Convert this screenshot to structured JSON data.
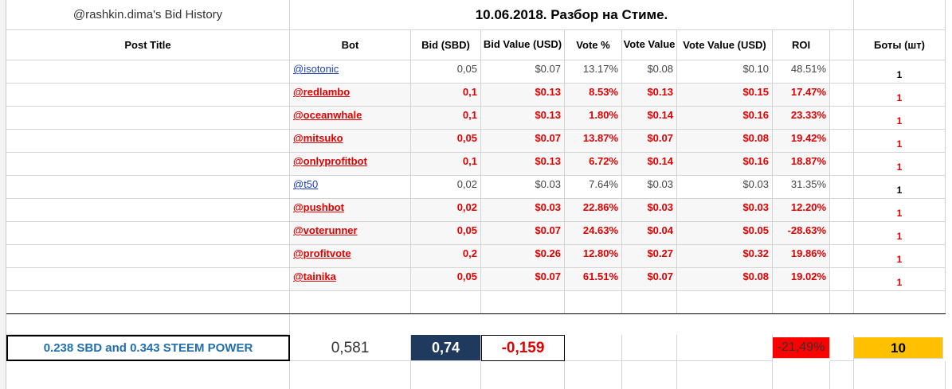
{
  "header": {
    "account_title": "@rashkin.dima's Bid History",
    "date_title": "10.06.2018. Разбор на Стиме."
  },
  "columns": [
    "Post Title",
    "Bot",
    "Bid (SBD)",
    "Bid Value (USD)",
    "Vote %",
    "Vote Value",
    "Vote Value (USD)",
    "ROI",
    "Боты (шт)"
  ],
  "rows": [
    {
      "bot": "@isotonic",
      "bid": "0,05",
      "bid_value": "$0.07",
      "vote_pct": "13.17%",
      "vote_value": "$0.08",
      "vote_value_usd": "$0.10",
      "roi": "48.51%",
      "count": "1",
      "style": "normal"
    },
    {
      "bot": "@redlambo",
      "bid": "0,1",
      "bid_value": "$0.13",
      "vote_pct": "8.53%",
      "vote_value": "$0.13",
      "vote_value_usd": "$0.15",
      "roi": "17.47%",
      "count": "1",
      "style": "red"
    },
    {
      "bot": "@oceanwhale",
      "bid": "0,1",
      "bid_value": "$0.13",
      "vote_pct": "1.80%",
      "vote_value": "$0.14",
      "vote_value_usd": "$0.16",
      "roi": "23.33%",
      "count": "1",
      "style": "red"
    },
    {
      "bot": "@mitsuko",
      "bid": "0,05",
      "bid_value": "$0.07",
      "vote_pct": "13.87%",
      "vote_value": "$0.07",
      "vote_value_usd": "$0.08",
      "roi": "19.42%",
      "count": "1",
      "style": "red"
    },
    {
      "bot": "@onlyprofitbot",
      "bid": "0,1",
      "bid_value": "$0.13",
      "vote_pct": "6.72%",
      "vote_value": "$0.14",
      "vote_value_usd": "$0.16",
      "roi": "18.87%",
      "count": "1",
      "style": "red"
    },
    {
      "bot": "@t50",
      "bid": "0,02",
      "bid_value": "$0.03",
      "vote_pct": "7.64%",
      "vote_value": "$0.03",
      "vote_value_usd": "$0.03",
      "roi": "31.35%",
      "count": "1",
      "style": "normal"
    },
    {
      "bot": "@pushbot",
      "bid": "0,02",
      "bid_value": "$0.03",
      "vote_pct": "22.86%",
      "vote_value": "$0.03",
      "vote_value_usd": "$0.03",
      "roi": "12.20%",
      "count": "1",
      "style": "red"
    },
    {
      "bot": "@voterunner",
      "bid": "0,05",
      "bid_value": "$0.07",
      "vote_pct": "24.63%",
      "vote_value": "$0.04",
      "vote_value_usd": "$0.05",
      "roi": "-28.63%",
      "count": "1",
      "style": "red"
    },
    {
      "bot": "@profitvote",
      "bid": "0,2",
      "bid_value": "$0.26",
      "vote_pct": "12.80%",
      "vote_value": "$0.27",
      "vote_value_usd": "$0.32",
      "roi": "19.86%",
      "count": "1",
      "style": "red"
    },
    {
      "bot": "@tainika",
      "bid": "0,05",
      "bid_value": "$0.07",
      "vote_pct": "61.51%",
      "vote_value": "$0.07",
      "vote_value_usd": "$0.08",
      "roi": "19.02%",
      "count": "1",
      "style": "red"
    }
  ],
  "summary": {
    "payout": "0.238 SBD and 0.343 STEEM POWER",
    "bid_total": "0,581",
    "bid_value_total": "0,74",
    "difference": "-0,159",
    "roi_total": "-21,49%",
    "bots_total": "10"
  },
  "colors": {
    "red": "#e00000",
    "link_blue": "#1f3fb8",
    "summary_blue_text": "#1f6fb0",
    "dark_navy": "#1f3a5c",
    "roi_red_bg": "#ff0000",
    "bots_orange_bg": "#ffc000"
  }
}
